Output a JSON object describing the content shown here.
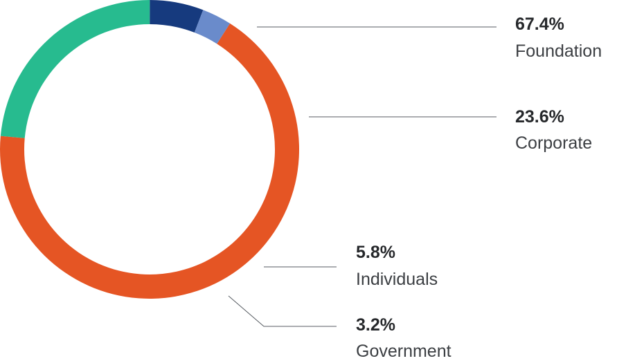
{
  "chart_data": {
    "type": "pie",
    "variant": "donut",
    "title": "",
    "legend": "none",
    "slices": [
      {
        "label": "Foundation",
        "percent_label": "67.4%",
        "value": 67.4,
        "color": "#E55524"
      },
      {
        "label": "Corporate",
        "percent_label": "23.6%",
        "value": 23.6,
        "color": "#27BB8F"
      },
      {
        "label": "Individuals",
        "percent_label": "5.8%",
        "value": 5.8,
        "color": "#163A7E"
      },
      {
        "label": "Government",
        "percent_label": "3.2%",
        "value": 3.2,
        "color": "#6A8BCB"
      }
    ]
  }
}
